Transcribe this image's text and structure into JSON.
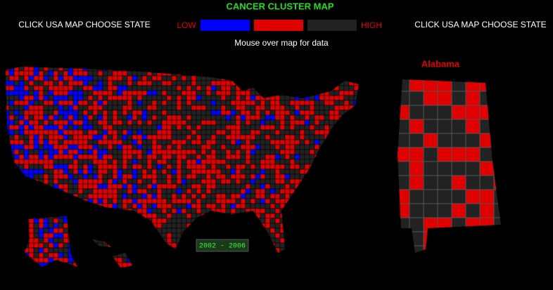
{
  "header": {
    "title": "CANCER CLUSTER MAP",
    "left_link": "CLICK USA MAP CHOOSE STATE",
    "right_link": "CLICK USA MAP CHOOSE STATE",
    "instruction": "Mouse over map for data"
  },
  "legend": {
    "low": "LOW",
    "high": "HIGH",
    "colors": [
      "#0000ff",
      "#e00000",
      "#222222"
    ]
  },
  "state_map": {
    "name": "Alabama"
  },
  "period": "2002 - 2006"
}
